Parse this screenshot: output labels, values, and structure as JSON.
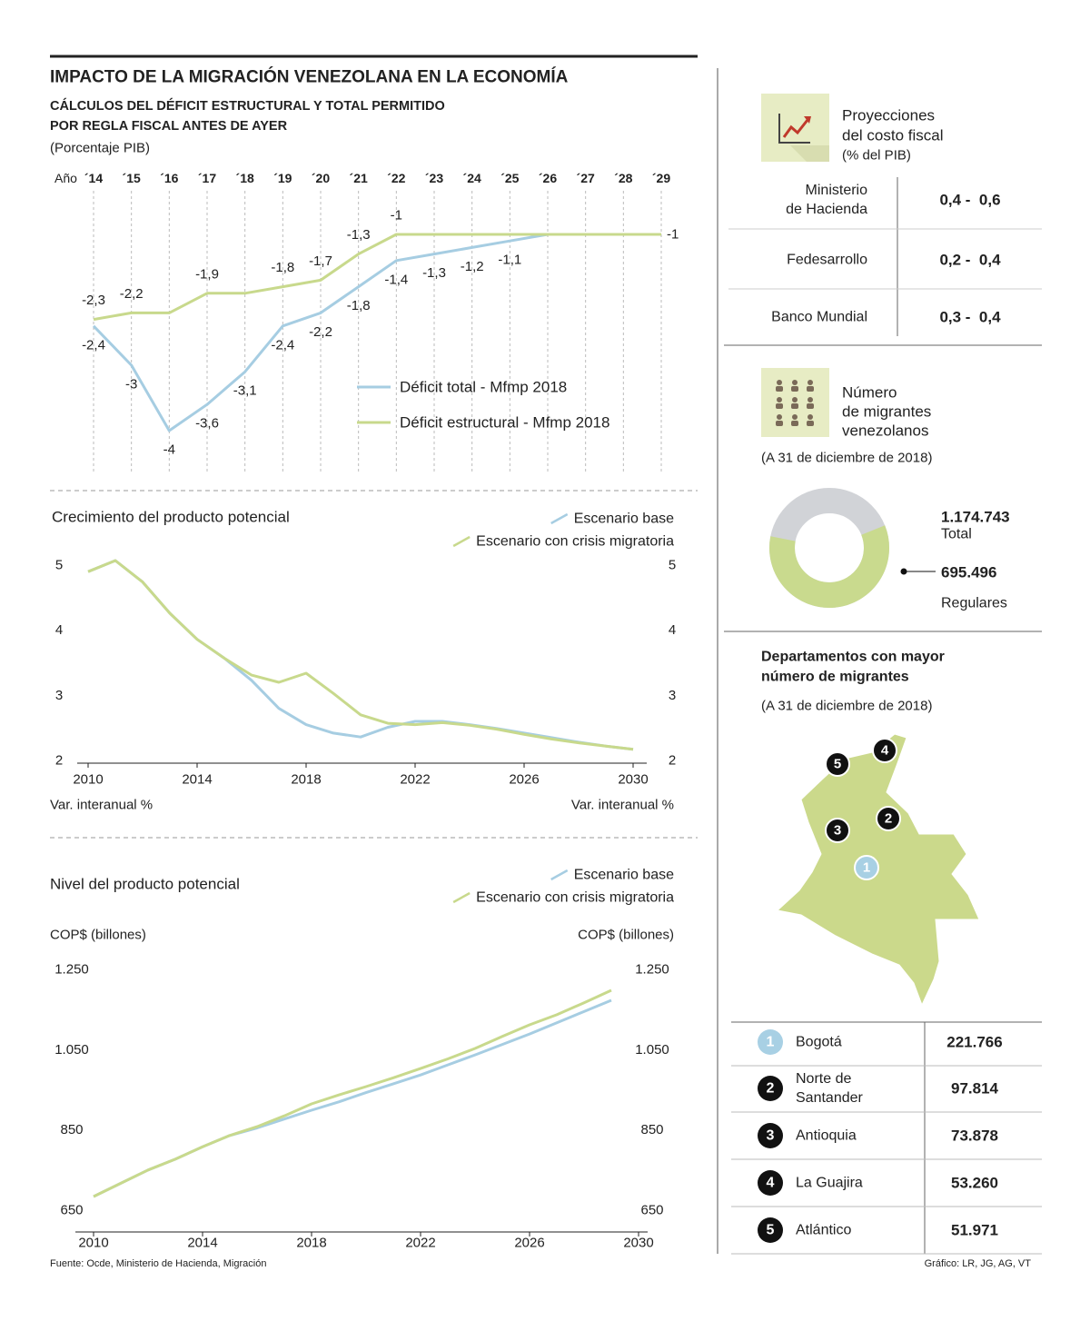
{
  "header": {
    "title": "IMPACTO DE LA MIGRACIÓN VENEZOLANA EN LA ECONOMÍA",
    "subtitle": [
      "CÁLCULOS DEL DÉFICIT ESTRUCTURAL Y TOTAL PERMITIDO",
      "POR REGLA FISCAL ANTES DE AYER"
    ],
    "unit": "(Porcentaje PIB)"
  },
  "chart_data": [
    {
      "type": "line",
      "x_label": "Año",
      "categories": [
        "´14",
        "´15",
        "´16",
        "´17",
        "´18",
        "´19",
        "´20",
        "´21",
        "´22",
        "´23",
        "´24",
        "´25",
        "´26",
        "´27",
        "´28",
        "´29"
      ],
      "grid": true,
      "series": [
        {
          "name": "Déficit total - Mfmp 2018",
          "color": "#a6cde2",
          "values": [
            -2.4,
            -3,
            -4,
            -3.6,
            -3.1,
            -2.4,
            -2.2,
            -1.8,
            -1.4,
            -1.3,
            -1.2,
            -1.1,
            -1,
            -1,
            -1,
            -1
          ],
          "value_labels": [
            "-2,4",
            "-3",
            "-4",
            "-3,6",
            "-3,1",
            "-2,4",
            "-2,2",
            "-1,8",
            "-1,4",
            "-1,3",
            "-1,2",
            "-1,1",
            null,
            null,
            null,
            "-1"
          ]
        },
        {
          "name": "Déficit estructural - Mfmp 2018",
          "color": "#c8d98c",
          "values": [
            -2.3,
            -2.2,
            -2.2,
            -1.9,
            -1.9,
            -1.8,
            -1.7,
            -1.3,
            -1,
            -1,
            -1,
            -1,
            -1,
            -1,
            -1,
            -1
          ],
          "value_labels": [
            "-2,3",
            "-2,2",
            null,
            "-1,9",
            null,
            "-1,8",
            "-1,7",
            "-1,3",
            "-1",
            null,
            null,
            null,
            null,
            null,
            null,
            null
          ]
        }
      ]
    },
    {
      "type": "line",
      "title": "Crecimiento del producto potencial",
      "y_label": "Var. interanual %",
      "x": [
        2010,
        2011,
        2012,
        2013,
        2014,
        2015,
        2016,
        2017,
        2018,
        2019,
        2020,
        2021,
        2022,
        2023,
        2024,
        2025,
        2026,
        2027,
        2028,
        2029,
        2030
      ],
      "xlim": [
        2010,
        2030
      ],
      "xticks": [
        2010,
        2014,
        2018,
        2022,
        2026,
        2030
      ],
      "ylim": [
        2,
        5
      ],
      "yticks": [
        2,
        3,
        4,
        5
      ],
      "series": [
        {
          "name": "Escenario base",
          "color": "#a6cde2",
          "values": [
            4.9,
            5.07,
            4.74,
            4.26,
            3.86,
            3.57,
            3.23,
            2.8,
            2.55,
            2.42,
            2.36,
            2.51,
            2.6,
            2.6,
            2.55,
            2.49,
            2.42,
            2.35,
            2.28,
            2.22,
            2.17
          ]
        },
        {
          "name": "Escenario con crisis migratoria",
          "color": "#c8d98c",
          "values": [
            4.9,
            5.07,
            4.74,
            4.26,
            3.86,
            3.57,
            3.31,
            3.2,
            3.34,
            3.03,
            2.7,
            2.57,
            2.55,
            2.58,
            2.54,
            2.48,
            2.4,
            2.33,
            2.27,
            2.22,
            2.17
          ]
        }
      ]
    },
    {
      "type": "line",
      "title": "Nivel del producto potencial",
      "y_label": "COP$ (billones)",
      "x": [
        2010,
        2011,
        2012,
        2013,
        2014,
        2015,
        2016,
        2017,
        2018,
        2019,
        2020,
        2021,
        2022,
        2023,
        2024,
        2025,
        2026,
        2027,
        2028,
        2029
      ],
      "xlim": [
        2010,
        2030
      ],
      "xticks": [
        2010,
        2014,
        2018,
        2022,
        2026,
        2030
      ],
      "ylim": [
        650,
        1250
      ],
      "yticks": [
        650,
        850,
        {
          "value": 1050,
          "label": "1.050"
        },
        {
          "value": 1250,
          "label": "1.250"
        }
      ],
      "series": [
        {
          "name": "Escenario base",
          "color": "#a6cde2",
          "values": [
            684,
            717,
            750,
            777,
            808,
            836,
            855,
            877,
            899,
            920,
            943,
            965,
            987,
            1012,
            1037,
            1063,
            1089,
            1117,
            1145,
            1173
          ]
        },
        {
          "name": "Escenario con crisis migratoria",
          "color": "#c8d98c",
          "values": [
            684,
            717,
            750,
            777,
            808,
            836,
            858,
            885,
            915,
            937,
            958,
            980,
            1003,
            1027,
            1053,
            1083,
            1112,
            1137,
            1167,
            1198
          ]
        }
      ]
    },
    {
      "type": "pie",
      "total": 1174743,
      "total_label": "1.174.743",
      "total_name": "Total",
      "track_color": "#d1d3d7",
      "categories": [
        "Regulares"
      ],
      "values": [
        695496
      ],
      "value_labels": [
        "695.496"
      ],
      "colors": [
        "#c9da8e"
      ]
    }
  ],
  "fiscal": {
    "title": [
      "Proyecciones",
      "del costo fiscal"
    ],
    "unit": "(% del PIB)",
    "rows": [
      {
        "name": [
          "Ministerio",
          "de Hacienda"
        ],
        "range": "0,4 -  0,6"
      },
      {
        "name": [
          "Fedesarrollo"
        ],
        "range": "0,2 -  0,4"
      },
      {
        "name": [
          "Banco Mundial"
        ],
        "range": "0,3 -  0,4"
      }
    ]
  },
  "migrants": {
    "title": [
      "Número",
      "de migrantes",
      "venezolanos"
    ],
    "date": "(A 31 de diciembre de 2018)"
  },
  "departments": {
    "title": [
      "Departamentos con mayor",
      "número de migrantes"
    ],
    "date": "(A 31 de diciembre de 2018)",
    "rows": [
      {
        "rank": "1",
        "name": [
          "Bogotá"
        ],
        "value": "221.766"
      },
      {
        "rank": "2",
        "name": [
          "Norte de",
          "Santander"
        ],
        "value": "97.814"
      },
      {
        "rank": "3",
        "name": [
          "Antioquia"
        ],
        "value": "73.878"
      },
      {
        "rank": "4",
        "name": [
          "La Guajira"
        ],
        "value": "53.260"
      },
      {
        "rank": "5",
        "name": [
          "Atlántico"
        ],
        "value": "51.971"
      }
    ]
  },
  "footer": {
    "source": "Fuente: Ocde, Ministerio de Hacienda, Migración",
    "credit": "Gráfico: LR, JG, AG, VT"
  }
}
